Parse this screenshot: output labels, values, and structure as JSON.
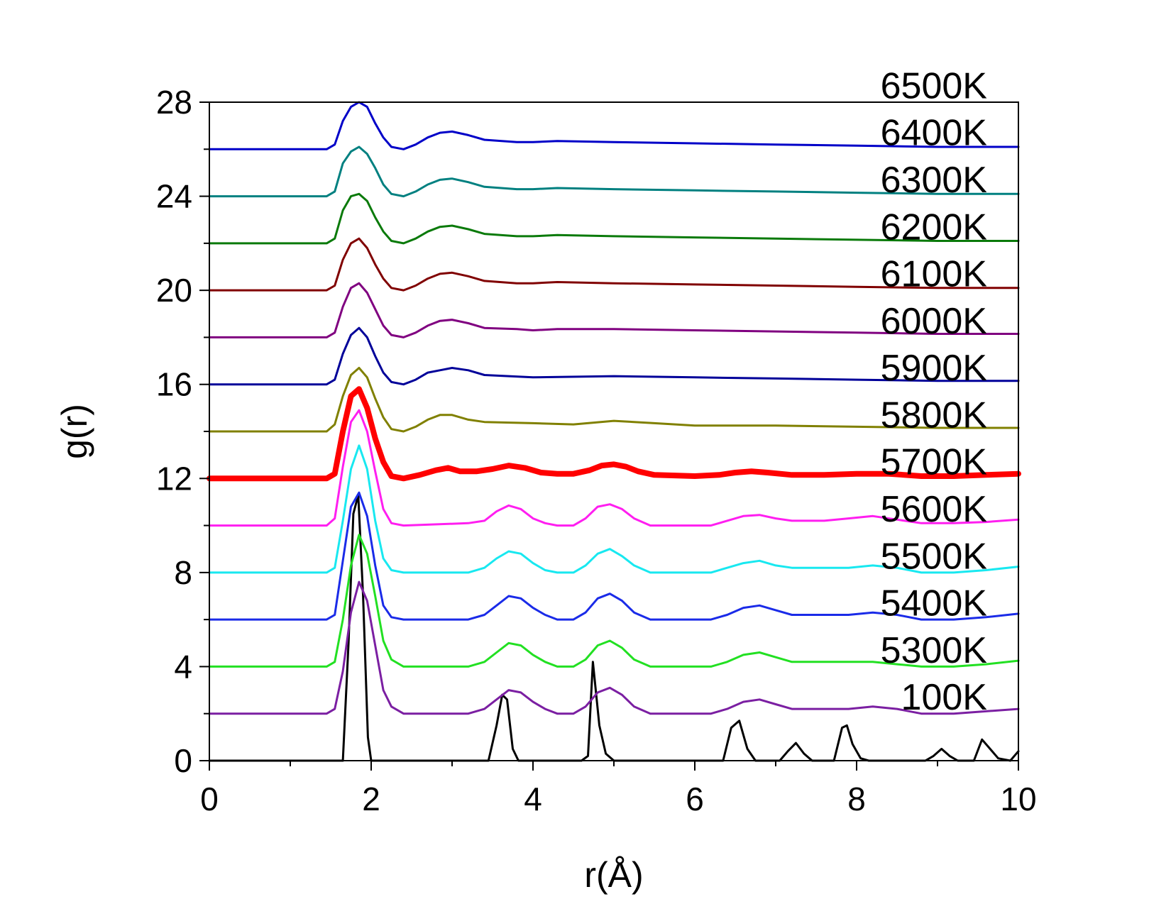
{
  "chart_data": {
    "type": "line",
    "title": "",
    "xlabel": "r(Å)",
    "ylabel": "g(r)",
    "xlim": [
      0,
      10
    ],
    "ylim": [
      0,
      28
    ],
    "xticks": [
      0,
      2,
      4,
      6,
      8,
      10
    ],
    "yticks": [
      0,
      4,
      8,
      12,
      16,
      20,
      24,
      28
    ],
    "grid": false,
    "legend": "labels-inline-right",
    "series": [
      {
        "name": "100K",
        "color": "#000000",
        "width": 3,
        "x": [
          0,
          1.65,
          1.72,
          1.78,
          1.84,
          1.9,
          1.96,
          2.0,
          3.45,
          3.55,
          3.62,
          3.68,
          3.75,
          3.82,
          4.6,
          4.68,
          4.74,
          4.82,
          4.9,
          5.0,
          6.35,
          6.45,
          6.55,
          6.65,
          6.75,
          7.05,
          7.15,
          7.25,
          7.35,
          7.45,
          7.72,
          7.82,
          7.88,
          7.95,
          8.05,
          8.15,
          8.85,
          8.95,
          9.05,
          9.15,
          9.25,
          9.45,
          9.55,
          9.65,
          9.75,
          9.9,
          10.0
        ],
        "y": [
          0,
          0,
          5,
          10.5,
          11.3,
          7,
          1,
          0,
          0,
          1.5,
          2.8,
          2.6,
          0.5,
          0,
          0,
          0.2,
          4.2,
          1.5,
          0.3,
          0,
          0,
          1.4,
          1.7,
          0.5,
          0,
          0,
          0.4,
          0.75,
          0.3,
          0,
          0,
          1.4,
          1.5,
          0.7,
          0.1,
          0,
          0,
          0.2,
          0.5,
          0.2,
          0,
          0,
          0.9,
          0.5,
          0.1,
          0,
          0.4
        ]
      },
      {
        "name": "5300K",
        "color": "#7b1fa2",
        "width": 3,
        "x": [
          0,
          1.45,
          1.55,
          1.65,
          1.75,
          1.85,
          1.95,
          2.05,
          2.15,
          2.25,
          2.4,
          3.2,
          3.4,
          3.55,
          3.7,
          3.85,
          4.0,
          4.15,
          4.3,
          4.5,
          4.65,
          4.8,
          4.95,
          5.1,
          5.25,
          5.45,
          6.2,
          6.4,
          6.6,
          6.8,
          7.0,
          7.2,
          7.6,
          7.9,
          8.2,
          8.5,
          8.8,
          9.2,
          9.6,
          10.0
        ],
        "y": [
          2,
          2,
          2.2,
          3.8,
          6.3,
          7.6,
          6.8,
          4.9,
          3.0,
          2.3,
          2.0,
          2.0,
          2.2,
          2.6,
          3.0,
          2.9,
          2.5,
          2.2,
          2.0,
          2.0,
          2.3,
          2.9,
          3.1,
          2.8,
          2.3,
          2.0,
          2.0,
          2.2,
          2.5,
          2.6,
          2.4,
          2.2,
          2.2,
          2.2,
          2.3,
          2.2,
          2.0,
          2.0,
          2.1,
          2.2
        ]
      },
      {
        "name": "5400K",
        "color": "#22e022",
        "width": 3,
        "x": [
          0,
          1.45,
          1.55,
          1.65,
          1.75,
          1.85,
          1.95,
          2.05,
          2.15,
          2.25,
          2.4,
          3.2,
          3.4,
          3.55,
          3.7,
          3.85,
          4.0,
          4.15,
          4.3,
          4.5,
          4.65,
          4.8,
          4.95,
          5.1,
          5.25,
          5.45,
          6.2,
          6.4,
          6.6,
          6.8,
          7.0,
          7.2,
          7.6,
          7.9,
          8.2,
          8.5,
          8.8,
          9.2,
          9.6,
          10.0
        ],
        "y": [
          4,
          4,
          4.2,
          6.0,
          8.3,
          9.6,
          8.8,
          7.0,
          5.1,
          4.3,
          4.0,
          4.0,
          4.2,
          4.6,
          5.0,
          4.9,
          4.5,
          4.2,
          4.0,
          4.0,
          4.3,
          4.9,
          5.1,
          4.8,
          4.3,
          4.0,
          4.0,
          4.2,
          4.5,
          4.6,
          4.4,
          4.2,
          4.2,
          4.2,
          4.2,
          4.1,
          4.0,
          4.0,
          4.1,
          4.25
        ]
      },
      {
        "name": "5500K",
        "color": "#1a2be8",
        "width": 3,
        "x": [
          0,
          1.45,
          1.55,
          1.65,
          1.75,
          1.85,
          1.95,
          2.05,
          2.15,
          2.25,
          2.4,
          3.2,
          3.4,
          3.55,
          3.7,
          3.85,
          4.0,
          4.15,
          4.3,
          4.5,
          4.65,
          4.8,
          4.95,
          5.1,
          5.25,
          5.45,
          6.2,
          6.4,
          6.6,
          6.8,
          7.0,
          7.2,
          7.6,
          7.9,
          8.2,
          8.5,
          8.8,
          9.2,
          9.6,
          10.0
        ],
        "y": [
          6,
          6,
          6.2,
          8.5,
          10.8,
          11.4,
          10.4,
          8.3,
          6.6,
          6.1,
          6.0,
          6.0,
          6.2,
          6.6,
          7.0,
          6.9,
          6.5,
          6.2,
          6.0,
          6.0,
          6.3,
          6.9,
          7.1,
          6.8,
          6.3,
          6.0,
          6.0,
          6.2,
          6.5,
          6.6,
          6.4,
          6.2,
          6.2,
          6.2,
          6.3,
          6.2,
          6.0,
          6.0,
          6.1,
          6.25
        ]
      },
      {
        "name": "5600K",
        "color": "#18e8f0",
        "width": 3,
        "x": [
          0,
          1.45,
          1.55,
          1.65,
          1.75,
          1.85,
          1.95,
          2.05,
          2.15,
          2.25,
          2.4,
          3.2,
          3.4,
          3.55,
          3.7,
          3.85,
          4.0,
          4.15,
          4.3,
          4.5,
          4.65,
          4.8,
          4.95,
          5.1,
          5.25,
          5.45,
          6.2,
          6.4,
          6.6,
          6.8,
          7.0,
          7.2,
          7.6,
          7.9,
          8.2,
          8.5,
          8.8,
          9.2,
          9.6,
          10.0
        ],
        "y": [
          8,
          8,
          8.2,
          10.2,
          12.4,
          13.4,
          12.4,
          10.2,
          8.6,
          8.1,
          8.0,
          8.0,
          8.2,
          8.6,
          8.9,
          8.8,
          8.4,
          8.1,
          8.0,
          8.0,
          8.3,
          8.8,
          9.0,
          8.7,
          8.3,
          8.0,
          8.0,
          8.2,
          8.4,
          8.5,
          8.3,
          8.2,
          8.2,
          8.2,
          8.3,
          8.2,
          8.0,
          8.0,
          8.1,
          8.25
        ]
      },
      {
        "name": "5700K",
        "color": "#ff1ef0",
        "width": 3,
        "x": [
          0,
          1.45,
          1.55,
          1.65,
          1.75,
          1.85,
          1.95,
          2.05,
          2.15,
          2.25,
          2.4,
          3.2,
          3.4,
          3.55,
          3.7,
          3.85,
          4.0,
          4.15,
          4.3,
          4.5,
          4.65,
          4.8,
          4.95,
          5.1,
          5.25,
          5.45,
          6.2,
          6.4,
          6.6,
          6.8,
          7.0,
          7.2,
          7.6,
          7.9,
          8.2,
          8.5,
          8.8,
          9.2,
          9.6,
          10.0
        ],
        "y": [
          10,
          10,
          10.3,
          12.5,
          14.4,
          14.9,
          14.0,
          12.3,
          10.7,
          10.1,
          10.0,
          10.1,
          10.2,
          10.6,
          10.85,
          10.7,
          10.3,
          10.1,
          10.0,
          10.0,
          10.3,
          10.8,
          10.9,
          10.7,
          10.3,
          10.0,
          10.0,
          10.2,
          10.4,
          10.45,
          10.3,
          10.2,
          10.2,
          10.3,
          10.4,
          10.25,
          10.1,
          10.1,
          10.15,
          10.25
        ]
      },
      {
        "name": "5800K",
        "color": "#ff0000",
        "width": 8,
        "x": [
          0,
          1.45,
          1.55,
          1.65,
          1.75,
          1.85,
          1.95,
          2.05,
          2.15,
          2.25,
          2.4,
          2.6,
          2.8,
          2.95,
          3.1,
          3.3,
          3.5,
          3.7,
          3.9,
          4.1,
          4.3,
          4.5,
          4.7,
          4.85,
          5.0,
          5.15,
          5.3,
          5.5,
          6.0,
          6.3,
          6.5,
          6.7,
          6.9,
          7.2,
          7.6,
          8.0,
          8.4,
          8.8,
          9.2,
          9.6,
          10.0
        ],
        "y": [
          12,
          12,
          12.2,
          14.0,
          15.5,
          15.8,
          15.0,
          13.7,
          12.7,
          12.1,
          12.0,
          12.15,
          12.35,
          12.45,
          12.3,
          12.3,
          12.4,
          12.55,
          12.45,
          12.25,
          12.2,
          12.2,
          12.35,
          12.55,
          12.6,
          12.5,
          12.3,
          12.15,
          12.1,
          12.15,
          12.25,
          12.3,
          12.25,
          12.15,
          12.15,
          12.2,
          12.2,
          12.1,
          12.1,
          12.15,
          12.2
        ]
      },
      {
        "name": "5900K",
        "color": "#808000",
        "width": 3,
        "x": [
          0,
          1.45,
          1.55,
          1.65,
          1.75,
          1.85,
          1.95,
          2.05,
          2.15,
          2.25,
          2.4,
          2.55,
          2.7,
          2.85,
          3.0,
          3.2,
          3.4,
          4.0,
          4.5,
          5.0,
          5.5,
          6.0,
          7.0,
          8.0,
          9.0,
          10.0
        ],
        "y": [
          14,
          14,
          14.3,
          15.5,
          16.4,
          16.7,
          16.3,
          15.4,
          14.6,
          14.1,
          14.0,
          14.2,
          14.5,
          14.7,
          14.7,
          14.5,
          14.4,
          14.35,
          14.3,
          14.45,
          14.35,
          14.25,
          14.25,
          14.2,
          14.15,
          14.15
        ]
      },
      {
        "name": "6000K",
        "color": "#000099",
        "width": 3,
        "x": [
          0,
          1.45,
          1.55,
          1.65,
          1.75,
          1.85,
          1.95,
          2.05,
          2.15,
          2.25,
          2.4,
          2.55,
          2.7,
          2.85,
          3.0,
          3.2,
          3.4,
          4.0,
          5.0,
          6.0,
          7.0,
          8.0,
          9.0,
          10.0
        ],
        "y": [
          16,
          16,
          16.2,
          17.3,
          18.1,
          18.4,
          18.0,
          17.2,
          16.5,
          16.1,
          16.0,
          16.2,
          16.5,
          16.6,
          16.7,
          16.6,
          16.4,
          16.3,
          16.35,
          16.3,
          16.25,
          16.2,
          16.15,
          16.15
        ]
      },
      {
        "name": "6100K",
        "color": "#800080",
        "width": 3,
        "x": [
          0,
          1.45,
          1.55,
          1.65,
          1.75,
          1.85,
          1.95,
          2.05,
          2.15,
          2.25,
          2.4,
          2.55,
          2.7,
          2.85,
          3.0,
          3.2,
          3.4,
          3.8,
          4.0,
          4.3,
          5.0,
          6.0,
          7.0,
          8.0,
          9.0,
          10.0
        ],
        "y": [
          18,
          18,
          18.2,
          19.3,
          20.1,
          20.3,
          19.9,
          19.2,
          18.5,
          18.1,
          18.0,
          18.2,
          18.5,
          18.7,
          18.75,
          18.6,
          18.4,
          18.35,
          18.3,
          18.35,
          18.35,
          18.3,
          18.25,
          18.2,
          18.15,
          18.15
        ]
      },
      {
        "name": "6200K",
        "color": "#800000",
        "width": 3,
        "x": [
          0,
          1.45,
          1.55,
          1.65,
          1.75,
          1.85,
          1.95,
          2.05,
          2.15,
          2.25,
          2.4,
          2.55,
          2.7,
          2.85,
          3.0,
          3.2,
          3.4,
          3.8,
          4.0,
          4.3,
          5.0,
          6.0,
          7.0,
          8.0,
          9.0,
          10.0
        ],
        "y": [
          20,
          20,
          20.2,
          21.3,
          22.0,
          22.2,
          21.8,
          21.1,
          20.5,
          20.1,
          20.0,
          20.2,
          20.5,
          20.7,
          20.75,
          20.6,
          20.4,
          20.3,
          20.3,
          20.35,
          20.3,
          20.25,
          20.2,
          20.15,
          20.1,
          20.1
        ]
      },
      {
        "name": "6300K",
        "color": "#0a7a0a",
        "width": 3,
        "x": [
          0,
          1.45,
          1.55,
          1.65,
          1.75,
          1.85,
          1.95,
          2.05,
          2.15,
          2.25,
          2.4,
          2.55,
          2.7,
          2.85,
          3.0,
          3.2,
          3.4,
          3.8,
          4.0,
          4.3,
          5.0,
          6.0,
          7.0,
          8.0,
          9.0,
          10.0
        ],
        "y": [
          22,
          22,
          22.2,
          23.4,
          24.0,
          24.1,
          23.8,
          23.1,
          22.5,
          22.1,
          22.0,
          22.2,
          22.5,
          22.7,
          22.75,
          22.6,
          22.4,
          22.3,
          22.3,
          22.35,
          22.3,
          22.25,
          22.2,
          22.15,
          22.1,
          22.1
        ]
      },
      {
        "name": "6400K",
        "color": "#008080",
        "width": 3,
        "x": [
          0,
          1.45,
          1.55,
          1.65,
          1.75,
          1.85,
          1.95,
          2.05,
          2.15,
          2.25,
          2.4,
          2.55,
          2.7,
          2.85,
          3.0,
          3.2,
          3.4,
          3.8,
          4.0,
          4.3,
          5.0,
          6.0,
          7.0,
          8.0,
          9.0,
          10.0
        ],
        "y": [
          24,
          24,
          24.2,
          25.4,
          25.9,
          26.1,
          25.8,
          25.2,
          24.5,
          24.1,
          24.0,
          24.2,
          24.5,
          24.7,
          24.75,
          24.6,
          24.4,
          24.3,
          24.3,
          24.35,
          24.3,
          24.25,
          24.2,
          24.15,
          24.1,
          24.1
        ]
      },
      {
        "name": "6500K",
        "color": "#0000c8",
        "width": 3,
        "x": [
          0,
          1.45,
          1.55,
          1.65,
          1.75,
          1.85,
          1.95,
          2.05,
          2.15,
          2.25,
          2.4,
          2.55,
          2.7,
          2.85,
          3.0,
          3.2,
          3.4,
          3.8,
          4.0,
          4.3,
          5.0,
          6.0,
          7.0,
          8.0,
          9.0,
          10.0
        ],
        "y": [
          26,
          26,
          26.2,
          27.2,
          27.8,
          28.0,
          27.8,
          27.1,
          26.5,
          26.1,
          26.0,
          26.2,
          26.5,
          26.7,
          26.75,
          26.6,
          26.4,
          26.3,
          26.3,
          26.35,
          26.3,
          26.25,
          26.2,
          26.15,
          26.1,
          26.1
        ]
      }
    ]
  }
}
